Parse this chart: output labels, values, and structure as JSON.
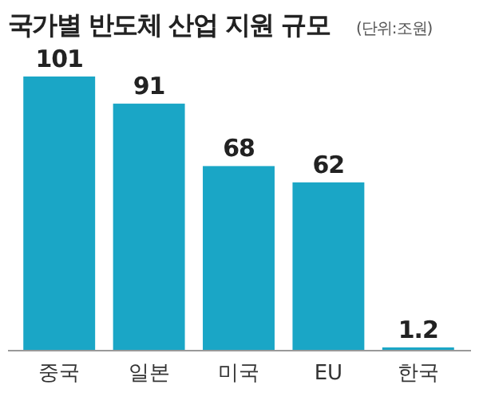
{
  "chart_data": {
    "type": "bar",
    "title": "국가별 반도체 산업 지원 규모",
    "subtitle": "(단위:조원)",
    "categories": [
      "중국",
      "일본",
      "미국",
      "EU",
      "한국"
    ],
    "values": [
      101,
      91,
      68,
      62,
      1.2
    ],
    "color": "#1aa6c6",
    "data_labels": true
  }
}
